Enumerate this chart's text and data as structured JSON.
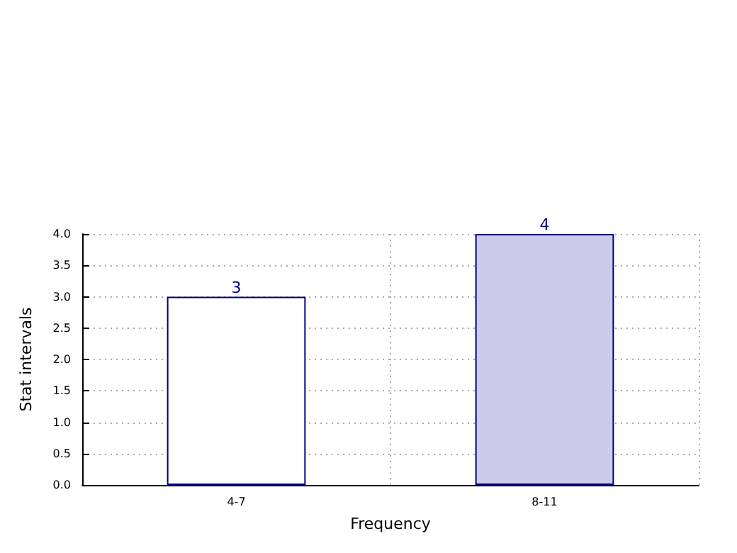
{
  "chart_data": {
    "type": "bar",
    "xlabel": "Frequency",
    "ylabel": "Stat intervals",
    "categories": [
      "4-7",
      "8-11"
    ],
    "values": [
      3,
      4
    ],
    "colors": [
      "#ffffff",
      "#ccccea"
    ],
    "ylim": [
      0,
      4
    ],
    "yticks": [
      "0.0",
      "0.5",
      "1.0",
      "1.5",
      "2.0",
      "2.5",
      "3.0",
      "3.5",
      "4.0"
    ],
    "grid": true,
    "data_labels": true
  }
}
